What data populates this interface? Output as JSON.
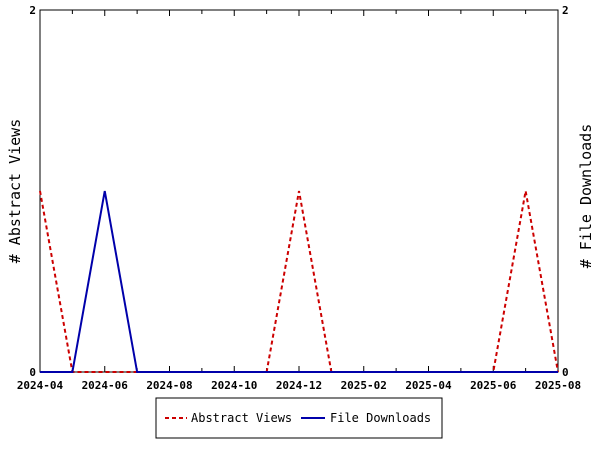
{
  "chart_data": {
    "type": "line",
    "x": [
      "2024-04",
      "2024-05",
      "2024-06",
      "2024-07",
      "2024-08",
      "2024-09",
      "2024-10",
      "2024-11",
      "2024-12",
      "2025-01",
      "2025-02",
      "2025-03",
      "2025-04",
      "2025-05",
      "2025-06",
      "2025-07",
      "2025-08"
    ],
    "x_tick_labels": [
      "2024-04",
      "2024-06",
      "2024-08",
      "2024-10",
      "2024-12",
      "2025-02",
      "2025-04",
      "2025-06",
      "2025-08"
    ],
    "series": [
      {
        "name": "Abstract Views",
        "axis": "left",
        "color": "#cc0000",
        "style": "dashed",
        "values": [
          1,
          0,
          0,
          0,
          0,
          0,
          0,
          0,
          1,
          0,
          0,
          0,
          0,
          0,
          0,
          1,
          0
        ]
      },
      {
        "name": "File Downloads",
        "axis": "right",
        "color": "#0000aa",
        "style": "solid",
        "values": [
          0,
          0,
          1,
          0,
          0,
          0,
          0,
          0,
          0,
          0,
          0,
          0,
          0,
          0,
          0,
          0,
          0
        ]
      }
    ],
    "ylabel": "# Abstract Views",
    "y2label": "# File Downloads",
    "ylim": [
      0,
      2
    ],
    "y2lim": [
      0,
      2
    ],
    "y_tick_labels": [
      "0",
      "2"
    ],
    "y2_tick_labels": [
      "0",
      "2"
    ],
    "grid": false,
    "legend_position": "bottom"
  }
}
